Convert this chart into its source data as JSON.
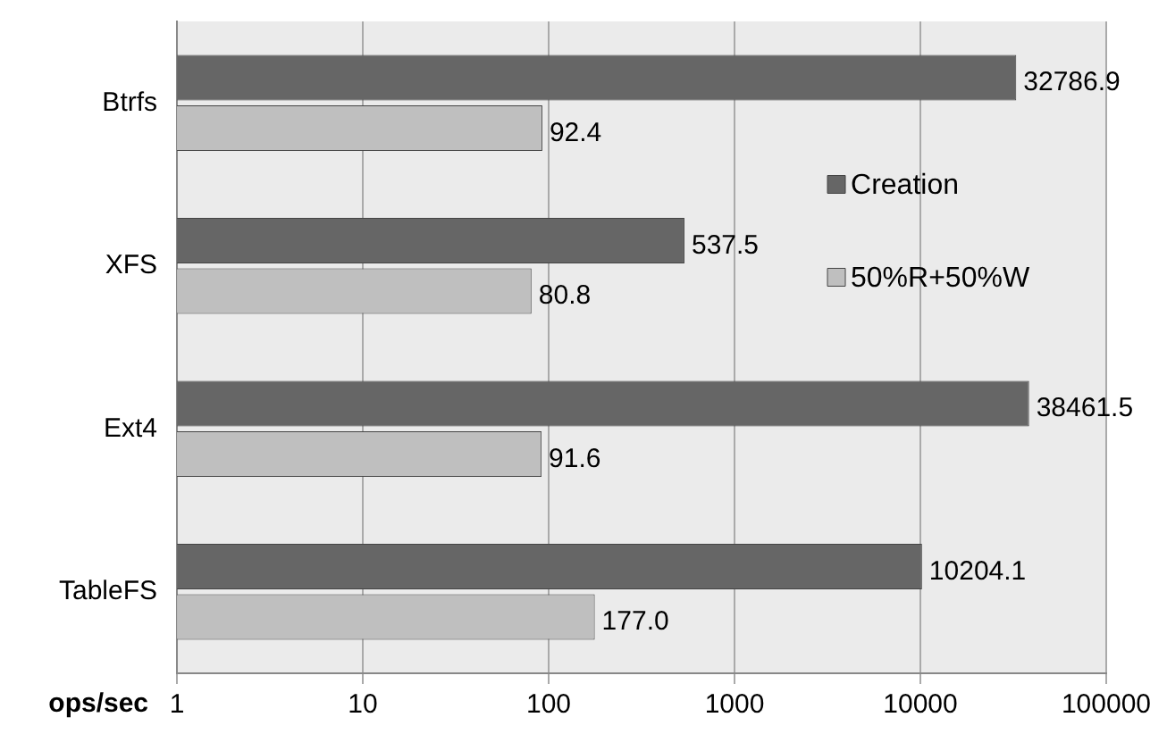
{
  "chart_data": {
    "type": "bar",
    "orientation": "horizontal",
    "categories": [
      "Btrfs",
      "XFS",
      "Ext4",
      "TableFS"
    ],
    "series": [
      {
        "name": "Creation",
        "color": "#666666",
        "values": [
          32786.9,
          537.5,
          38461.5,
          10204.1
        ],
        "value_labels": [
          "32786.9",
          "537.5",
          "38461.5",
          "10204.1"
        ]
      },
      {
        "name": "50%R+50%W",
        "color": "#bfbfbf",
        "values": [
          92.4,
          80.8,
          91.6,
          177.0
        ],
        "value_labels": [
          "92.4",
          "80.8",
          "91.6",
          "177.0"
        ]
      }
    ],
    "xlabel": "ops/sec",
    "log": "x",
    "xlim": [
      1,
      100000
    ],
    "xticks": [
      1,
      10,
      100,
      1000,
      10000,
      100000
    ],
    "grid": "x",
    "legend": "right"
  }
}
